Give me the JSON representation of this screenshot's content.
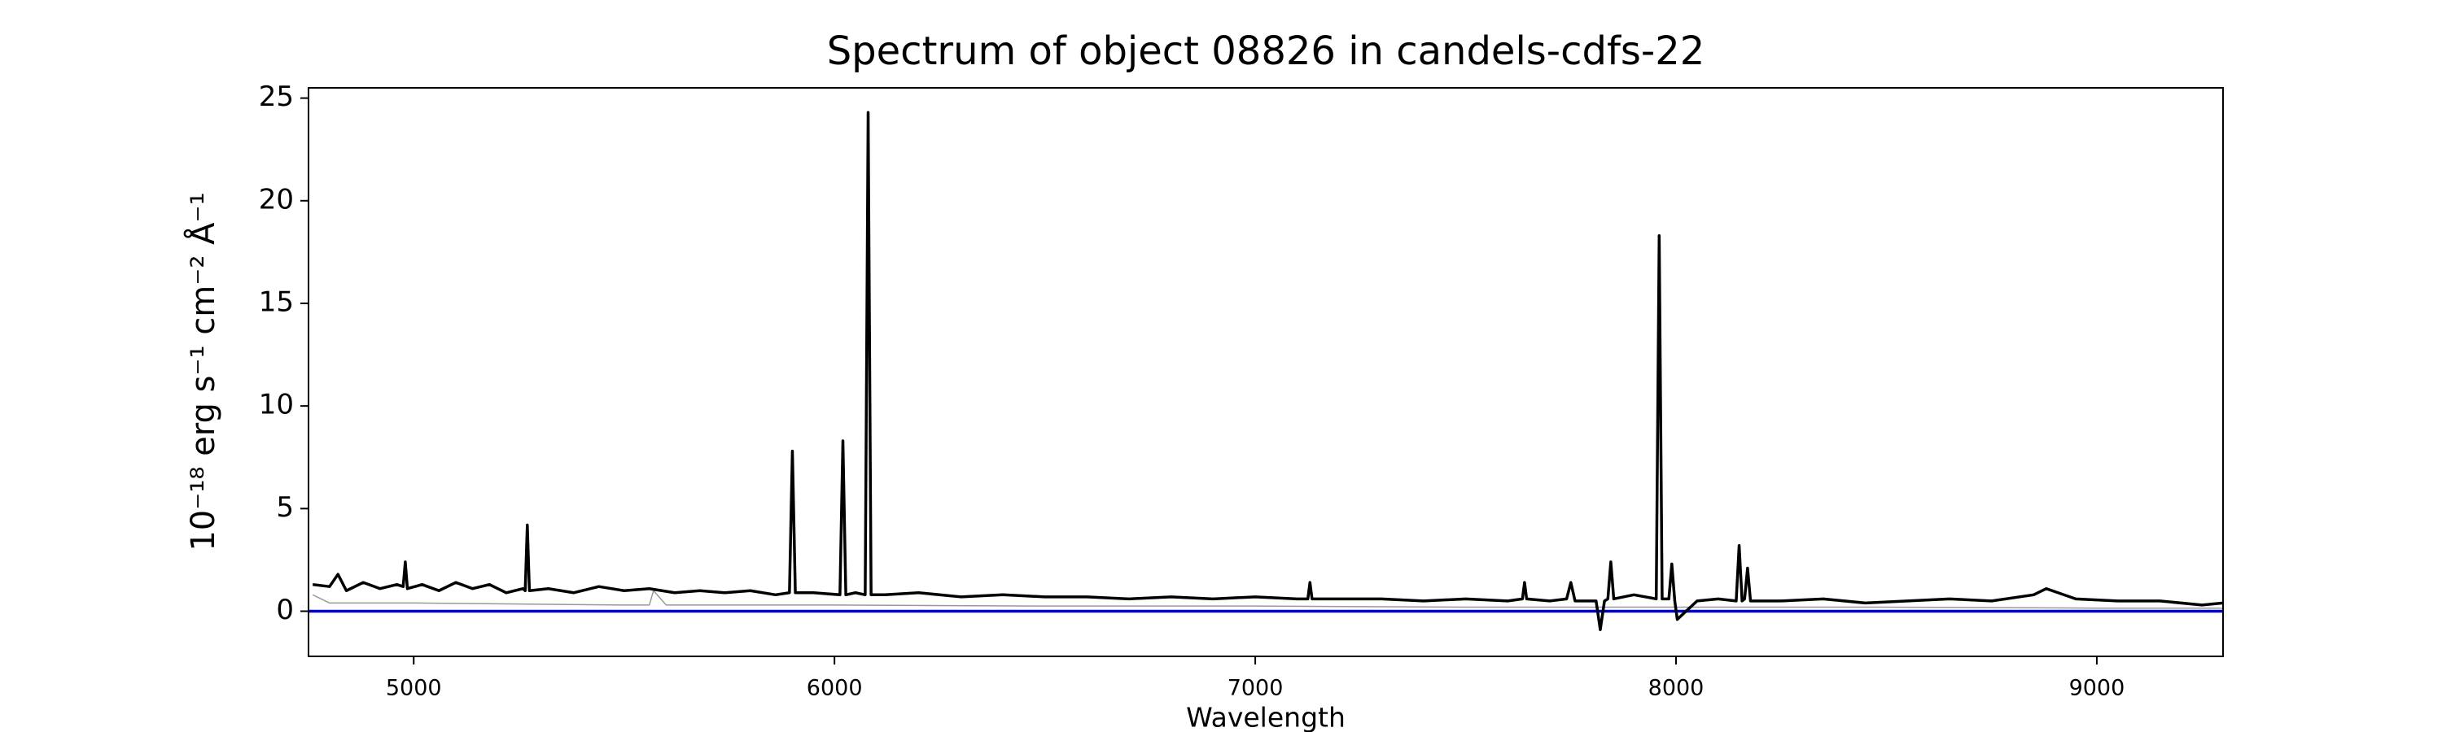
{
  "chart_data": {
    "type": "line",
    "title": "Spectrum of object 08826 in candels-cdfs-22",
    "xlabel": "Wavelength",
    "ylabel": "10⁻¹⁸ erg s⁻¹ cm⁻² Å⁻¹",
    "xlim": [
      4750,
      9300
    ],
    "ylim": [
      -2.2,
      25.5
    ],
    "xticks": [
      5000,
      6000,
      7000,
      8000,
      9000
    ],
    "yticks": [
      0,
      5,
      10,
      15,
      20,
      25
    ],
    "series": [
      {
        "color": "#999999",
        "x": [
          4760,
          4800,
          5000,
          5500,
          5560,
          5570,
          5600,
          6000,
          6500,
          7000,
          7500,
          8000,
          8500,
          9000,
          9300
        ],
        "values": [
          0.8,
          0.4,
          0.4,
          0.3,
          0.3,
          1.0,
          0.3,
          0.3,
          0.25,
          0.25,
          0.2,
          0.2,
          0.2,
          0.15,
          0.15
        ]
      },
      {
        "color": "#0000cc",
        "x": [
          4750,
          9300
        ],
        "values": [
          0,
          0
        ]
      },
      {
        "color": "#000000",
        "x": [
          4760,
          4800,
          4820,
          4840,
          4880,
          4920,
          4960,
          4975,
          4980,
          4985,
          5020,
          5060,
          5100,
          5140,
          5180,
          5220,
          5260,
          5265,
          5270,
          5275,
          5320,
          5380,
          5440,
          5500,
          5560,
          5620,
          5680,
          5740,
          5800,
          5860,
          5893,
          5900,
          5907,
          5950,
          6013,
          6020,
          6027,
          6050,
          6073,
          6080,
          6087,
          6120,
          6200,
          6300,
          6400,
          6500,
          6600,
          6700,
          6800,
          6900,
          7000,
          7100,
          7125,
          7130,
          7135,
          7200,
          7300,
          7400,
          7500,
          7600,
          7635,
          7640,
          7645,
          7700,
          7740,
          7750,
          7760,
          7810,
          7820,
          7830,
          7838,
          7845,
          7852,
          7900,
          7953,
          7960,
          7967,
          7983,
          7990,
          7997,
          8003,
          8050,
          8100,
          8143,
          8150,
          8157,
          8163,
          8170,
          8177,
          8250,
          8350,
          8450,
          8550,
          8650,
          8750,
          8850,
          8880,
          8950,
          9050,
          9150,
          9250,
          9300
        ],
        "values": [
          1.3,
          1.2,
          1.8,
          1.0,
          1.4,
          1.1,
          1.3,
          1.2,
          2.4,
          1.1,
          1.3,
          1.0,
          1.4,
          1.1,
          1.3,
          0.9,
          1.1,
          1.0,
          4.2,
          1.0,
          1.1,
          0.9,
          1.2,
          1.0,
          1.1,
          0.9,
          1.0,
          0.9,
          1.0,
          0.8,
          0.9,
          7.8,
          0.9,
          0.9,
          0.8,
          8.3,
          0.8,
          0.9,
          0.8,
          24.3,
          0.8,
          0.8,
          0.9,
          0.7,
          0.8,
          0.7,
          0.7,
          0.6,
          0.7,
          0.6,
          0.7,
          0.6,
          0.6,
          1.4,
          0.6,
          0.6,
          0.6,
          0.5,
          0.6,
          0.5,
          0.6,
          1.4,
          0.6,
          0.5,
          0.6,
          1.4,
          0.5,
          0.5,
          -0.9,
          0.5,
          0.6,
          2.4,
          0.6,
          0.8,
          0.6,
          18.3,
          0.6,
          0.6,
          2.3,
          0.5,
          -0.4,
          0.5,
          0.6,
          0.5,
          3.2,
          0.5,
          0.6,
          2.1,
          0.5,
          0.5,
          0.6,
          0.4,
          0.5,
          0.6,
          0.5,
          0.8,
          1.1,
          0.6,
          0.5,
          0.5,
          0.3,
          0.4
        ]
      }
    ]
  }
}
